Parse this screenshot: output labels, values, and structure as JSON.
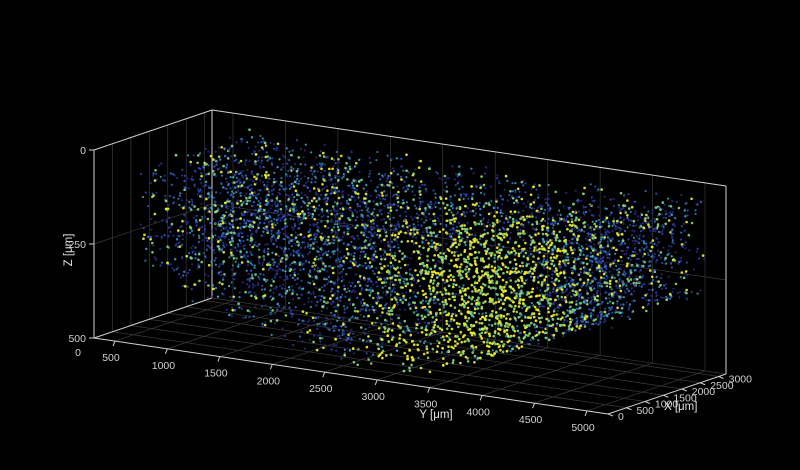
{
  "chart_data": {
    "type": "scatter3d",
    "title": "",
    "xlabel": "X [μm]",
    "ylabel": "Y [μm]",
    "zlabel": "Z [μm]",
    "xlim": [
      0,
      3200
    ],
    "ylim": [
      300,
      5200
    ],
    "zlim": [
      0,
      500
    ],
    "z_reversed": true,
    "xticks": [
      "0",
      "500",
      "1000",
      "1500",
      "2000",
      "2500",
      "3000"
    ],
    "yticks": [
      "500",
      "1000",
      "1500",
      "2000",
      "2500",
      "3000",
      "3500",
      "4000",
      "4500",
      "5000"
    ],
    "zticks": [
      "0",
      "250",
      "500"
    ],
    "yzero_tick": "0",
    "grid": true,
    "colormap": [
      "#2a2f8f",
      "#2f55c8",
      "#2e86d8",
      "#36b6c8",
      "#7fcf7a",
      "#e8e82a"
    ],
    "point_cloud": {
      "description_free": true,
      "y_range": [
        700,
        5100
      ],
      "x_range": [
        0,
        3100
      ],
      "z_range": [
        30,
        480
      ],
      "dense_bright_region_y": [
        2800,
        4100
      ]
    }
  }
}
